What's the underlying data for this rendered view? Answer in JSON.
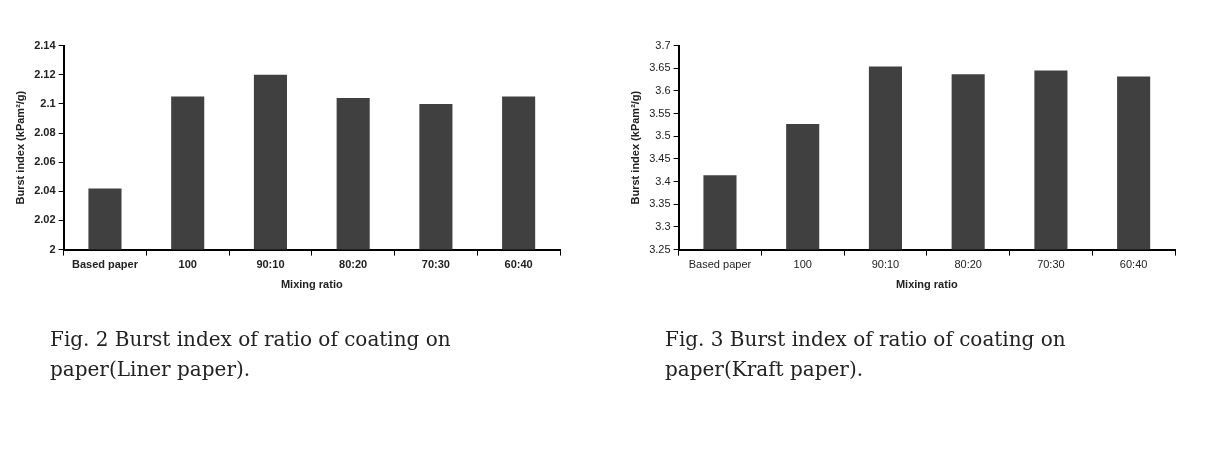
{
  "chart_data": [
    {
      "type": "bar",
      "ylabel": "Burst index (kPam²/g)",
      "xlabel": "Mixing ratio",
      "categories": [
        "Based paper",
        "100",
        "90:10",
        "80:20",
        "70:30",
        "60:40"
      ],
      "series": [
        {
          "color": "#404040",
          "values": [
            2.042,
            2.105,
            2.12,
            2.104,
            2.1,
            2.105
          ]
        }
      ],
      "ylim": [
        2,
        2.14
      ],
      "yticks": [
        2,
        2.02,
        2.04,
        2.06,
        2.08,
        2.1,
        2.12,
        2.14
      ],
      "grid": false,
      "legend": false,
      "annotations": [
        "Fig.  2  Burst index of ratio of coating on paper(Liner paper)."
      ]
    },
    {
      "type": "bar",
      "ylabel": "Burst index (kPam²/g)",
      "xlabel": "Mixing ratio",
      "categories": [
        "Based paper",
        "100",
        "90:10",
        "80:20",
        "70:30",
        "60:40"
      ],
      "series": [
        {
          "color": "#404040",
          "values": [
            3.414,
            3.527,
            3.654,
            3.637,
            3.645,
            3.632
          ]
        }
      ],
      "ylim": [
        3.25,
        3.7
      ],
      "yticks": [
        3.25,
        3.3,
        3.35,
        3.4,
        3.45,
        3.5,
        3.55,
        3.6,
        3.65,
        3.7
      ],
      "grid": false,
      "legend": false,
      "annotations": [
        "Fig.  3  Burst index of ratio of coating on paper(Kraft paper)."
      ]
    }
  ]
}
